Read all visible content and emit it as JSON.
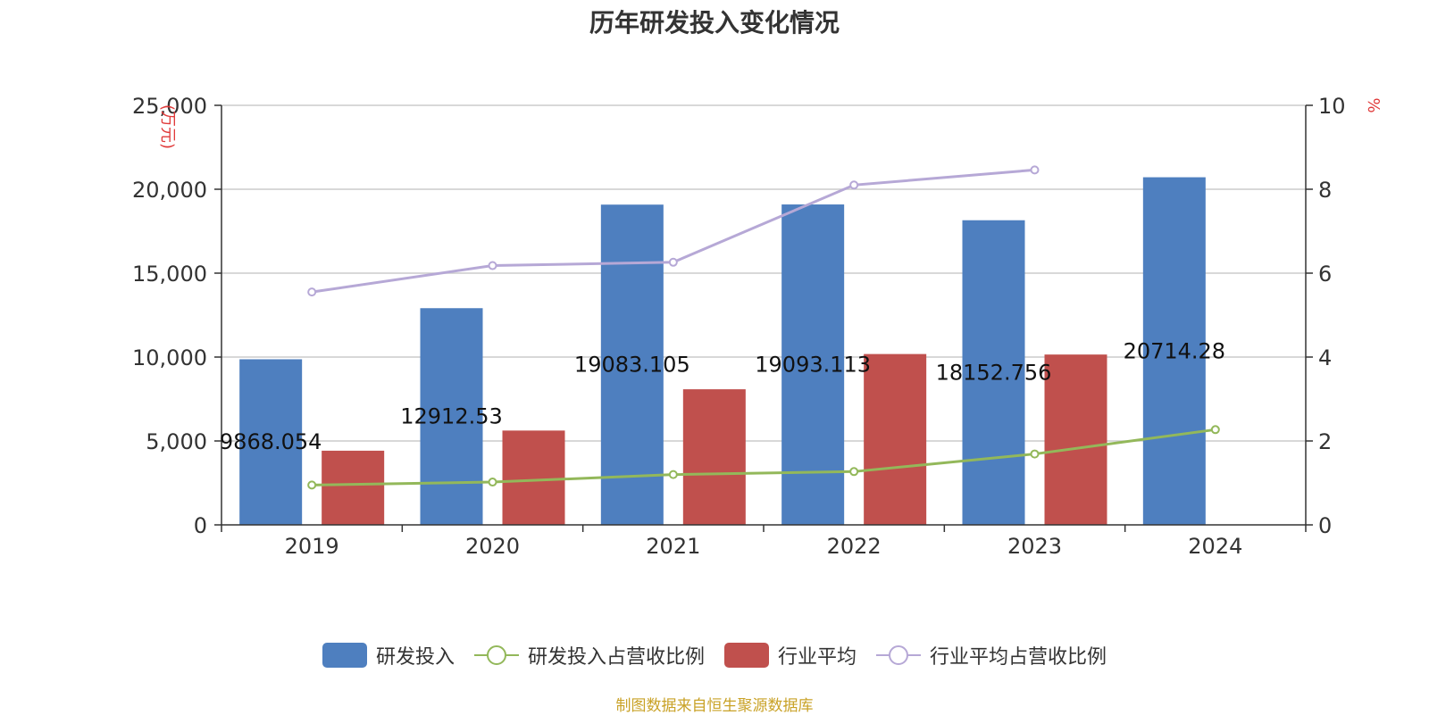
{
  "chart_data": {
    "type": "bar",
    "title": "历年研发投入变化情况",
    "categories": [
      "2019",
      "2020",
      "2021",
      "2022",
      "2023",
      "2024"
    ],
    "left_axis": {
      "unit": "(万元)",
      "ylim": [
        0,
        25000
      ],
      "ticks": [
        "0",
        "5,000",
        "10,000",
        "15,000",
        "20,000",
        "25,000"
      ]
    },
    "right_axis": {
      "unit": "%",
      "ylim": [
        0,
        10
      ],
      "ticks": [
        "0",
        "2",
        "4",
        "6",
        "8",
        "10"
      ]
    },
    "series": [
      {
        "name": "研发投入",
        "kind": "bar",
        "axis": "left",
        "color": "#4e7fbf",
        "values": [
          9868.054,
          12912.53,
          19083.105,
          19093.113,
          18152.756,
          20714.28
        ],
        "labels": [
          "9868.054",
          "12912.53",
          "19083.105",
          "19093.113",
          "18152.756",
          "20714.28"
        ]
      },
      {
        "name": "研发投入占营收比例",
        "kind": "line",
        "axis": "right",
        "color": "#93b85a",
        "values": [
          0.95,
          1.02,
          1.2,
          1.27,
          1.69,
          2.27
        ]
      },
      {
        "name": "行业平均",
        "kind": "bar",
        "axis": "left",
        "color": "#c0504d",
        "values": [
          4420,
          5620,
          8080,
          10180,
          10150,
          null
        ]
      },
      {
        "name": "行业平均占营收比例",
        "kind": "line",
        "axis": "right",
        "color": "#b6a8d6",
        "values": [
          5.55,
          6.18,
          6.26,
          8.1,
          8.46,
          null
        ]
      }
    ],
    "grid": true,
    "legend_position": "bottom"
  },
  "source_text": "制图数据来自恒生聚源数据库"
}
